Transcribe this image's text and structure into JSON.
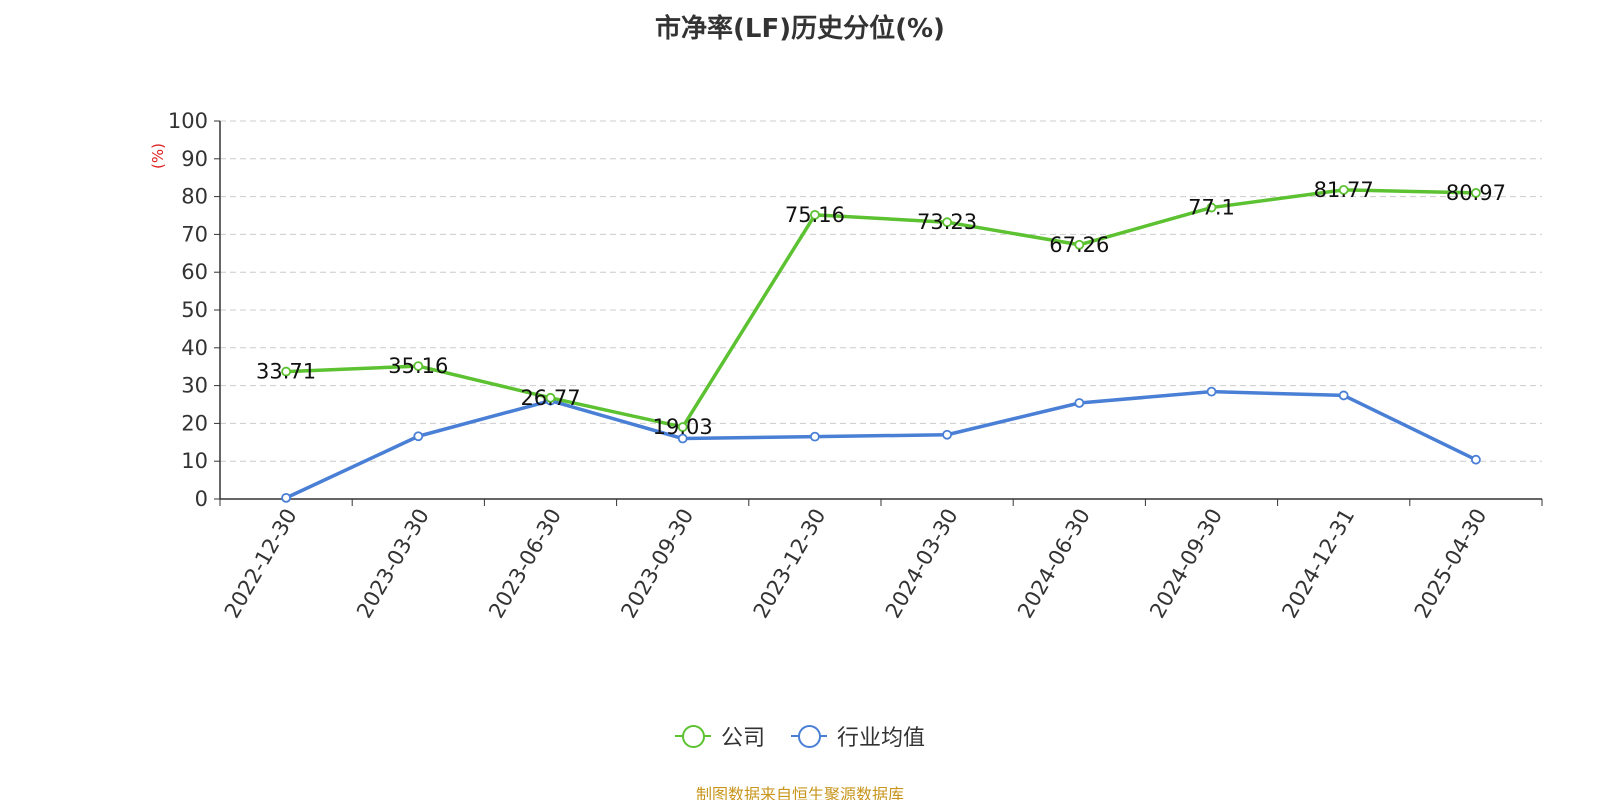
{
  "chart_data": {
    "type": "line",
    "title": "市净率(LF)历史分位(%)",
    "ylabel": "(%)",
    "xlabel": "",
    "ylim": [
      0,
      100
    ],
    "yticks": [
      0,
      10,
      20,
      30,
      40,
      50,
      60,
      70,
      80,
      90,
      100
    ],
    "categories": [
      "2022-12-30",
      "2023-03-30",
      "2023-06-30",
      "2023-09-30",
      "2023-12-30",
      "2024-03-30",
      "2024-06-30",
      "2024-09-30",
      "2024-12-31",
      "2025-04-30"
    ],
    "series": [
      {
        "name": "公司",
        "color": "#5cc231",
        "values": [
          33.71,
          35.16,
          26.77,
          19.03,
          75.16,
          73.23,
          67.26,
          77.1,
          81.77,
          80.97
        ],
        "show_labels": true
      },
      {
        "name": "行业均值",
        "color": "#4a7fd6",
        "values": [
          0.3,
          16.6,
          26.0,
          16.0,
          16.5,
          17.0,
          25.4,
          28.4,
          27.4,
          10.4
        ],
        "show_labels": false
      }
    ],
    "grid": true,
    "legend_position": "bottom-center"
  },
  "source_note": "制图数据来自恒生聚源数据库"
}
